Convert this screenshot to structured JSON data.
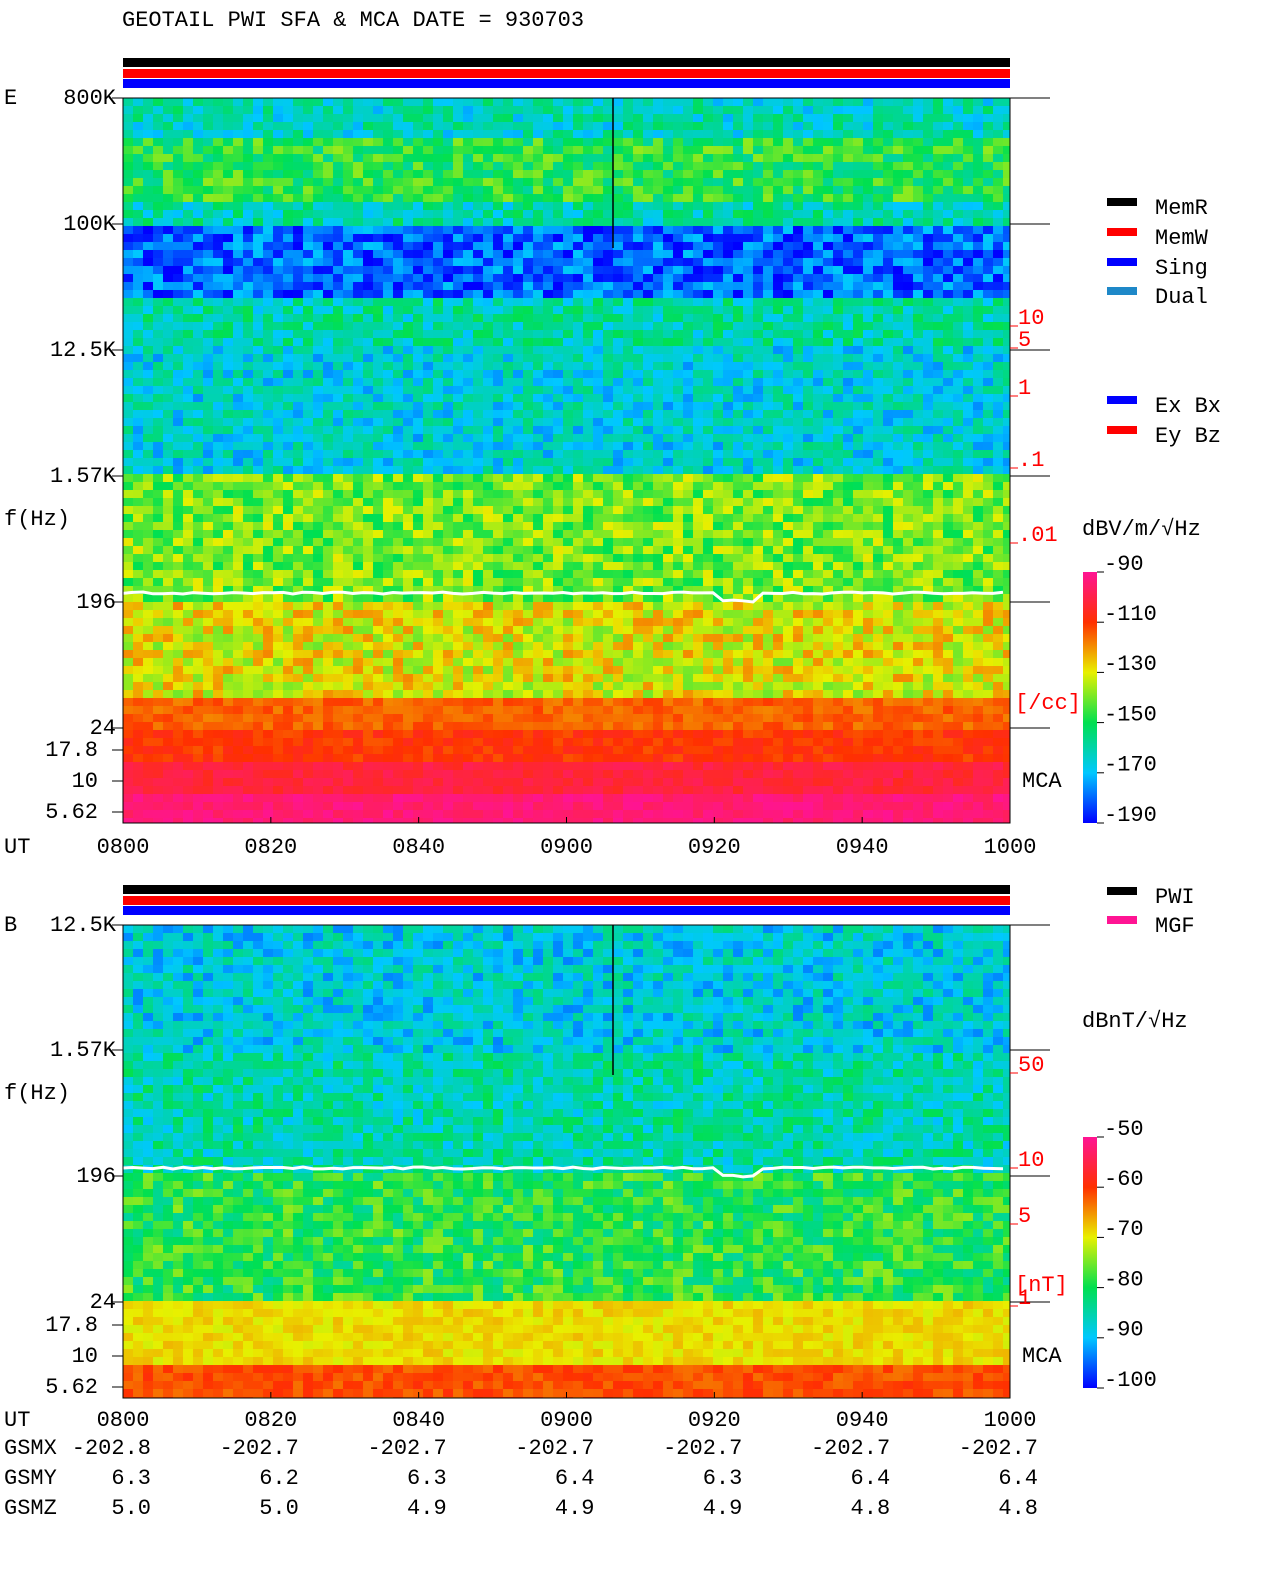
{
  "title": "GEOTAIL   PWI SFA & MCA   DATE = 930703",
  "panels": [
    {
      "label": "E",
      "y_axis_label": "f(Hz)",
      "freq_ticks": [
        "800K",
        "100K",
        "12.5K",
        "1.57K",
        "196",
        "24"
      ],
      "mca_ticks": [
        "17.8",
        "10",
        "5.62"
      ],
      "mca_label": "MCA",
      "time_label": "UT",
      "time_ticks": [
        "0800",
        "0820",
        "0840",
        "0900",
        "0920",
        "0940",
        "1000"
      ],
      "right_scale": [
        "10",
        "5",
        "1",
        ".1",
        ".01"
      ],
      "right_unit": "[/cc]",
      "colorbar_unit": "dBV/m/√Hz",
      "colorbar_ticks": [
        -90,
        -110,
        -130,
        -150,
        -170,
        -190
      ],
      "legend": [
        {
          "name": "MemR",
          "color": "#000000"
        },
        {
          "name": "MemW",
          "color": "#ff0000"
        },
        {
          "name": "Sing",
          "color": "#0000ff"
        },
        {
          "name": "Dual",
          "color": "#1e88c8"
        },
        {
          "name": "Ex Bx",
          "color": "#0000ff"
        },
        {
          "name": "Ey Bz",
          "color": "#ff0000"
        }
      ]
    },
    {
      "label": "B",
      "y_axis_label": "f(Hz)",
      "freq_ticks": [
        "12.5K",
        "1.57K",
        "196",
        "24"
      ],
      "mca_ticks": [
        "17.8",
        "10",
        "5.62"
      ],
      "mca_label": "MCA",
      "time_label": "UT",
      "time_ticks": [
        "0800",
        "0820",
        "0840",
        "0900",
        "0920",
        "0940",
        "1000"
      ],
      "right_scale": [
        "50",
        "10",
        "5",
        "1"
      ],
      "right_unit": "[nT]",
      "colorbar_unit": "dBnT/√Hz",
      "colorbar_ticks": [
        -50,
        -60,
        -70,
        -80,
        -90,
        -100
      ],
      "legend": [
        {
          "name": "PWI",
          "color": "#000000"
        },
        {
          "name": "MGF",
          "color": "#ff1493"
        }
      ]
    }
  ],
  "orbit": {
    "rows": [
      {
        "name": "GSMX",
        "values": [
          "-202.8",
          "-202.7",
          "-202.7",
          "-202.7",
          "-202.7",
          "-202.7",
          "-202.7"
        ]
      },
      {
        "name": "GSMY",
        "values": [
          "6.3",
          "6.2",
          "6.3",
          "6.4",
          "6.3",
          "6.4",
          "6.4"
        ]
      },
      {
        "name": "GSMZ",
        "values": [
          "5.0",
          "5.0",
          "4.9",
          "4.9",
          "4.9",
          "4.8",
          "4.8"
        ]
      }
    ]
  }
}
